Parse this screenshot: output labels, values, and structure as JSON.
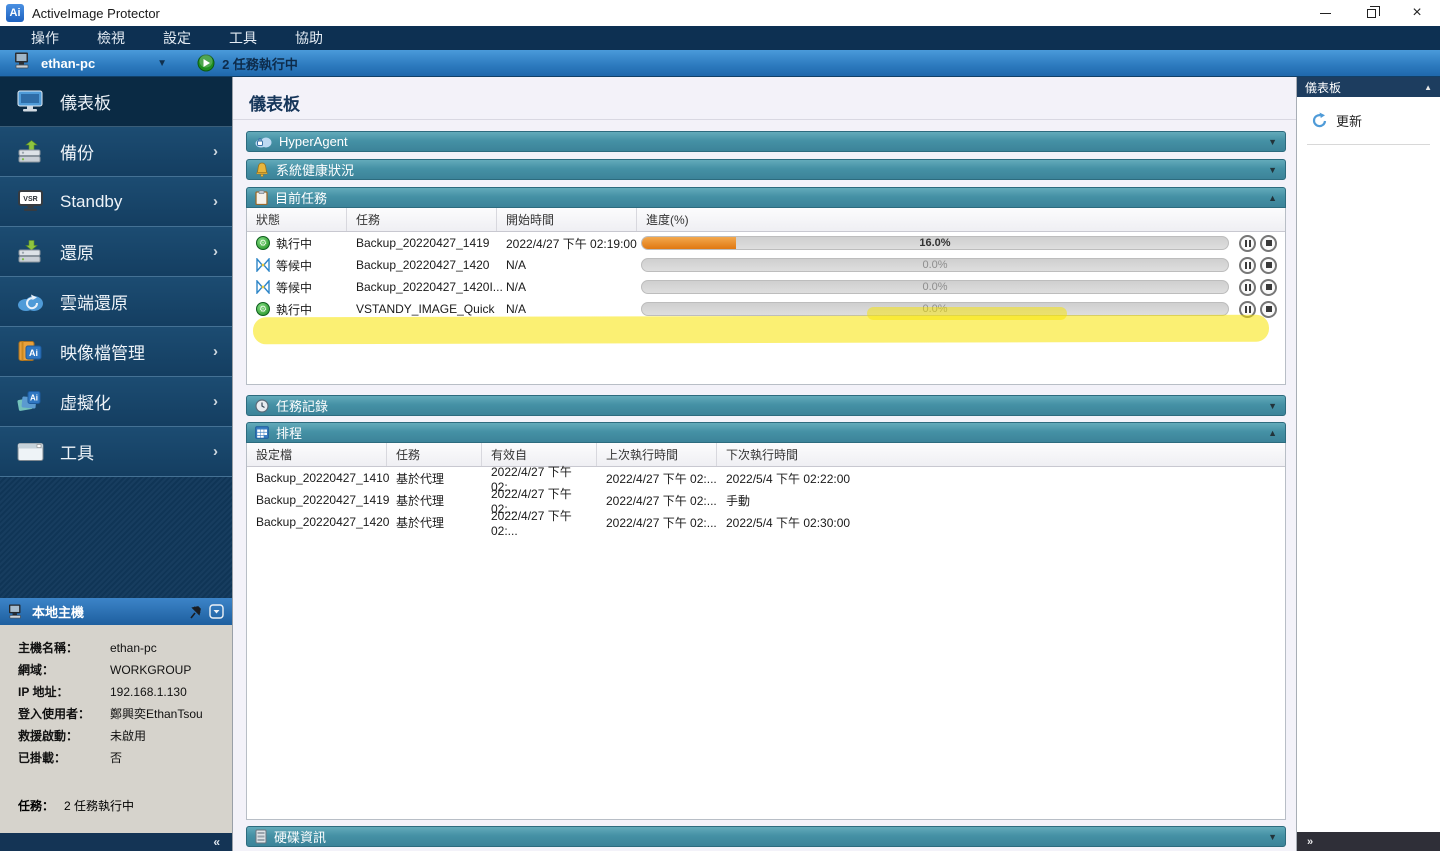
{
  "window": {
    "title": "ActiveImage Protector",
    "logo_text": "Ai"
  },
  "menu": {
    "items": [
      "操作",
      "檢視",
      "設定",
      "工具",
      "協助"
    ]
  },
  "hostbar": {
    "host": "ethan-pc",
    "running_status": "2 任務執行中"
  },
  "sidebar": {
    "items": [
      {
        "label": "儀表板"
      },
      {
        "label": "備份"
      },
      {
        "label": "Standby"
      },
      {
        "label": "還原"
      },
      {
        "label": "雲端還原"
      },
      {
        "label": "映像檔管理"
      },
      {
        "label": "虛擬化"
      },
      {
        "label": "工具"
      }
    ],
    "chevron": "›",
    "collapse_glyph": "«"
  },
  "host_info": {
    "title": "本地主機",
    "rows": [
      {
        "label": "主機名稱：",
        "value": "ethan-pc"
      },
      {
        "label": "網域：",
        "value": "WORKGROUP"
      },
      {
        "label": "IP 地址：",
        "value": "192.168.1.130"
      },
      {
        "label": "登入使用者：",
        "value": "鄭興奕EthanTsou"
      },
      {
        "label": "救援啟動：",
        "value": "未啟用"
      },
      {
        "label": "已掛載：",
        "value": "否"
      }
    ],
    "task_row": {
      "label": "任務：",
      "value": "2 任務執行中"
    }
  },
  "main": {
    "title": "儀表板"
  },
  "panels": {
    "hyperagent": {
      "title": "HyperAgent",
      "collapsed_glyph": "▼"
    },
    "health": {
      "title": "系統健康狀況",
      "collapsed_glyph": "▼"
    },
    "current_tasks": {
      "title": "目前任務",
      "expanded_glyph": "▲",
      "columns": [
        "狀態",
        "任務",
        "開始時間",
        "進度(%)"
      ],
      "rows": [
        {
          "status": "執行中",
          "state": "running",
          "task": "Backup_20220427_1419",
          "start": "2022/4/27 下午 02:19:00",
          "progress": 16,
          "progress_label": "16.0%"
        },
        {
          "status": "等候中",
          "state": "waiting",
          "task": "Backup_20220427_1420",
          "start": "N/A",
          "progress": 0,
          "progress_label": "0.0%"
        },
        {
          "status": "等候中",
          "state": "waiting",
          "task": "Backup_20220427_1420I...",
          "start": "N/A",
          "progress": 0,
          "progress_label": "0.0%"
        },
        {
          "status": "執行中",
          "state": "running",
          "task": "VSTANDY_IMAGE_Quick",
          "start": "N/A",
          "progress": 0,
          "progress_label": "0.0%",
          "highlighted": true
        }
      ]
    },
    "task_log": {
      "title": "任務記錄",
      "collapsed_glyph": "▼"
    },
    "schedule": {
      "title": "排程",
      "expanded_glyph": "▲",
      "columns": [
        "設定檔",
        "任務",
        "有效自",
        "上次執行時間",
        "下次執行時間"
      ],
      "rows": [
        {
          "profile": "Backup_20220427_1410",
          "task": "基於代理",
          "valid_from": "2022/4/27 下午 02:...",
          "last_run": "2022/4/27 下午 02:...",
          "next_run": "2022/5/4 下午 02:22:00"
        },
        {
          "profile": "Backup_20220427_1419",
          "task": "基於代理",
          "valid_from": "2022/4/27 下午 02:...",
          "last_run": "2022/4/27 下午 02:...",
          "next_run": "手動"
        },
        {
          "profile": "Backup_20220427_1420",
          "task": "基於代理",
          "valid_from": "2022/4/27 下午 02:...",
          "last_run": "2022/4/27 下午 02:...",
          "next_run": "2022/5/4 下午 02:30:00"
        }
      ]
    },
    "disk_info": {
      "title": "硬碟資訊",
      "collapsed_glyph": "▼"
    }
  },
  "right_panel": {
    "title": "儀表板",
    "refresh_label": "更新",
    "expand_glyph": "»"
  },
  "colors": {
    "accent_teal": "#4793a7",
    "progress_orange": "#e8821e",
    "highlight_yellow": "#f8e400",
    "hostbar_blue": "#2e7cc0",
    "sidebar_navy": "#10375a",
    "running_green": "#229022",
    "waiting_blue": "#3b8fd0"
  }
}
